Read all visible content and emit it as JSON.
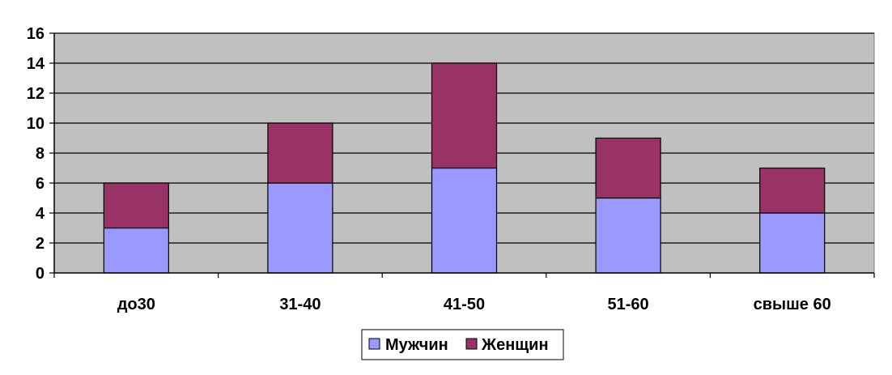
{
  "chart_data": {
    "type": "bar",
    "stacked": true,
    "categories": [
      "до30",
      "31-40",
      "41-50",
      "51-60",
      "свыше 60"
    ],
    "series": [
      {
        "name": "Мужчин",
        "values": [
          3,
          6,
          7,
          5,
          4
        ],
        "color": "#9999ff"
      },
      {
        "name": "Женщин",
        "values": [
          3,
          4,
          7,
          4,
          3
        ],
        "color": "#993366"
      }
    ],
    "ylim": [
      0,
      16
    ],
    "yticks": [
      0,
      2,
      4,
      6,
      8,
      10,
      12,
      14,
      16
    ],
    "grid": true,
    "legend": "bottom",
    "plot_background": "#c0c0c0"
  }
}
